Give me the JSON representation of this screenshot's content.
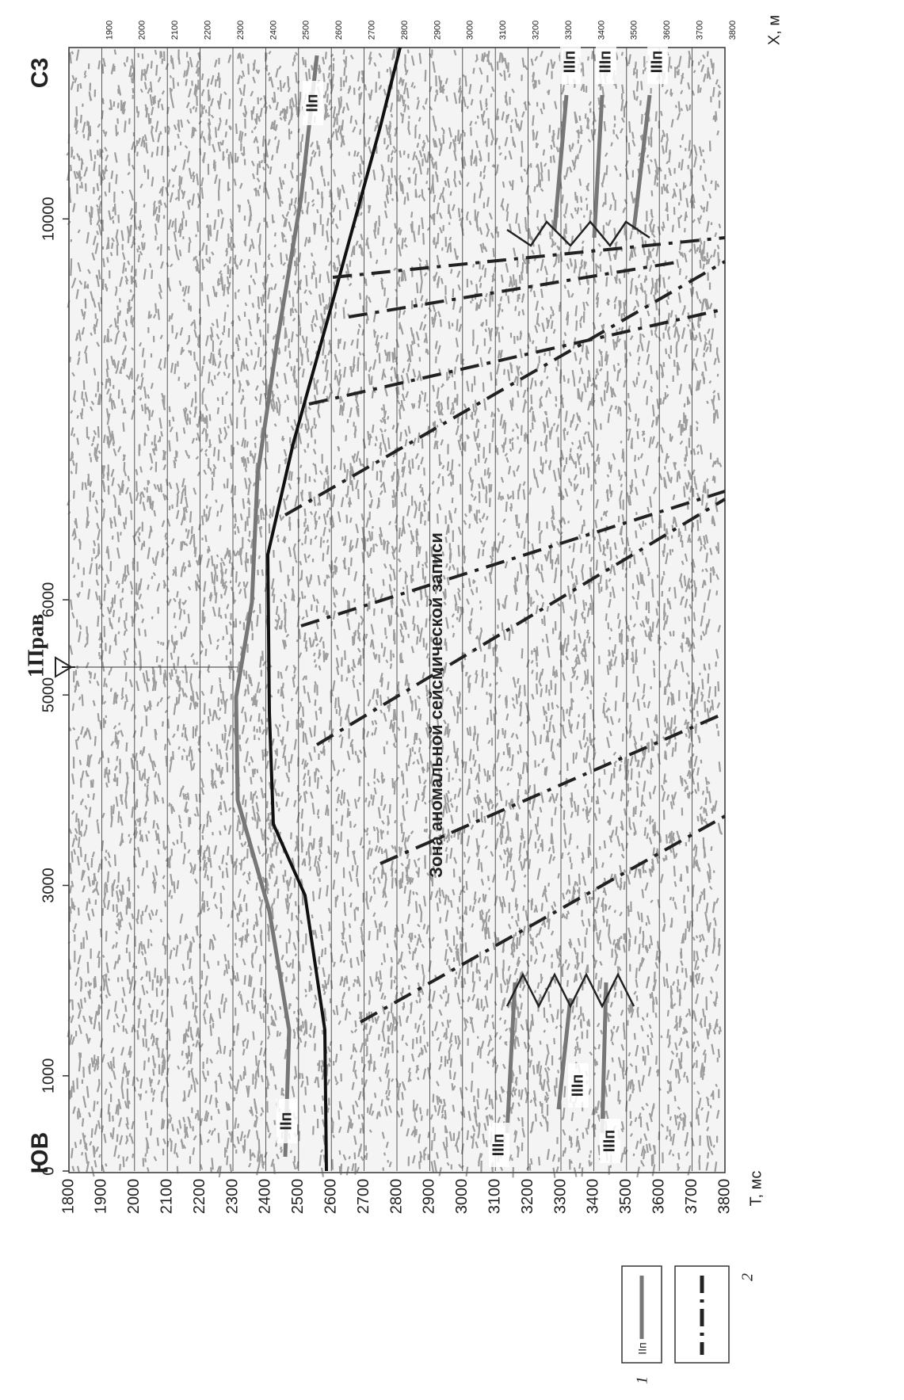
{
  "labels": {
    "nw": "С3",
    "se": "ЮВ",
    "well": "1Прав",
    "zone": "Зона аномальной сейсмической записи"
  },
  "chart_data": {
    "type": "seismic-section",
    "x_label": "T, мс",
    "y_label": "X, м",
    "xlim": [
      1800,
      3800
    ],
    "xticks": [
      1800,
      1900,
      2000,
      2100,
      2200,
      2300,
      2400,
      2500,
      2600,
      2700,
      2800,
      2900,
      3000,
      3100,
      3200,
      3300,
      3400,
      3500,
      3600,
      3700,
      3800
    ],
    "xticks_top": [
      1900,
      2000,
      2100,
      2200,
      2300,
      2400,
      2500,
      2600,
      2700,
      2800,
      2900,
      3000,
      3100,
      3200,
      3300,
      3400,
      3500,
      3600,
      3700,
      3800
    ],
    "ylim": [
      0,
      11800
    ],
    "yticks": [
      0,
      1000,
      3000,
      5000,
      6000,
      10000
    ],
    "grid": true,
    "horizon_labels": [
      "IIп",
      "IIп",
      "IIIп",
      "IIIп",
      "IIIп",
      "IIIп",
      "IIIп",
      "IIIп"
    ],
    "legend": {
      "item_label": "IIп",
      "numbers": [
        "1",
        "2"
      ]
    }
  }
}
